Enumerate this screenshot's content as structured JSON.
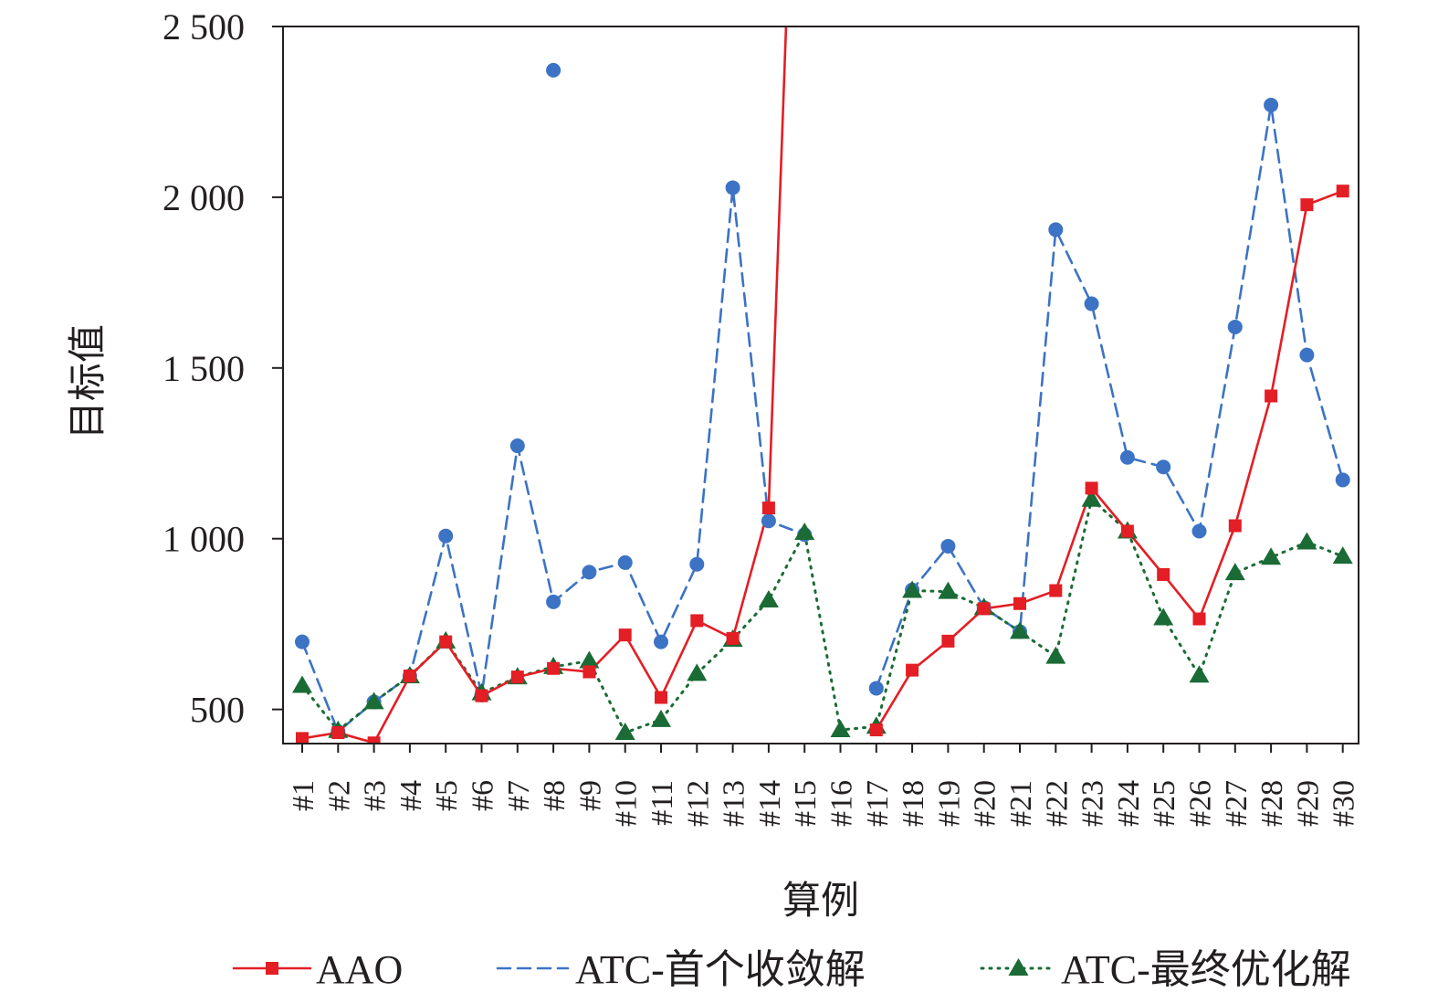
{
  "chart_data": {
    "type": "line",
    "xlabel": "算例",
    "ylabel": "目标值",
    "ylim": [
      400,
      2500
    ],
    "yticks": [
      500,
      1000,
      1500,
      2000,
      2500
    ],
    "ytick_labels": [
      "500",
      "1 000",
      "1 500",
      "2 000",
      "2 500"
    ],
    "categories": [
      "#1",
      "#2",
      "#3",
      "#4",
      "#5",
      "#6",
      "#7",
      "#8",
      "#9",
      "#10",
      "#11",
      "#12",
      "#13",
      "#14",
      "#15",
      "#16",
      "#17",
      "#18",
      "#19",
      "#20",
      "#21",
      "#22",
      "#23",
      "#24",
      "#25",
      "#26",
      "#27",
      "#28",
      "#29",
      "#30"
    ],
    "legend_position": "bottom",
    "grid": false,
    "series": [
      {
        "name": "AAO",
        "color": "#e31e24",
        "style": "solid",
        "marker": "square",
        "values": [
          415,
          432,
          402,
          598,
          698,
          540,
          595,
          620,
          610,
          718,
          535,
          760,
          708,
          1090,
          4000,
          null,
          440,
          615,
          700,
          795,
          810,
          848,
          1148,
          1022,
          895,
          765,
          1038,
          1418,
          1978,
          2018
        ]
      },
      {
        "name": "ATC-首个收敛解",
        "color": "#3c73c4",
        "style": "dashed",
        "marker": "circle",
        "values": [
          698,
          435,
          522,
          598,
          1008,
          542,
          1272,
          815,
          902,
          930,
          698,
          925,
          2028,
          1052,
          1012,
          null,
          562,
          850,
          978,
          798,
          728,
          1905,
          1688,
          1238,
          1210,
          1022,
          1620,
          2270,
          1538,
          1172
        ]
      },
      {
        "name": "ATC-最终优化解",
        "color": "#1a6b35",
        "style": "dotted",
        "marker": "triangle",
        "values": [
          570,
          438,
          522,
          598,
          700,
          548,
          595,
          625,
          642,
          432,
          470,
          605,
          705,
          820,
          1018,
          440,
          450,
          848,
          845,
          798,
          728,
          655,
          1115,
          1022,
          768,
          600,
          900,
          945,
          990,
          948
        ]
      }
    ],
    "outliers": [
      {
        "series": "ATC-首个收敛解",
        "category": "#8",
        "value": 2372
      }
    ]
  }
}
